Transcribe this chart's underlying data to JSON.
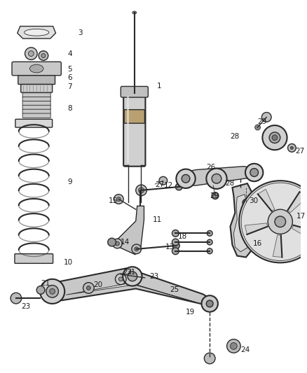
{
  "bg_color": "#ffffff",
  "line_color": "#2a2a2a",
  "text_color": "#1a1a1a",
  "fig_width": 4.38,
  "fig_height": 5.33,
  "dpi": 100
}
